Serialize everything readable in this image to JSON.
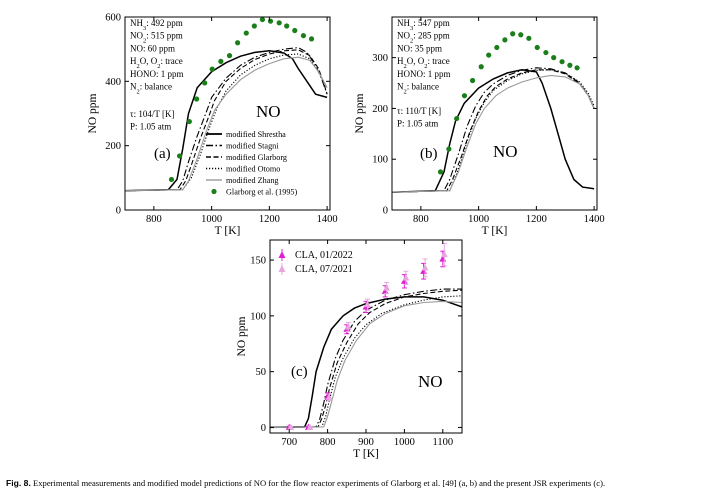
{
  "caption": {
    "label": "Fig. 8.",
    "text": "Experimental measurements and modified model predictions of NO for the flow reactor experiments of Glarborg et al. [49] (a, b) and the present JSR experiments (c)."
  },
  "colors": {
    "exp_green": "#1a7f1a",
    "cla_2022": "#e01fd2",
    "cla_2021": "#e8a6e0",
    "model_gray": "#9a9a9a"
  },
  "model_styles": [
    {
      "name": "modified Shrestha",
      "dash": "solid",
      "color": "#000000",
      "width": 1.5
    },
    {
      "name": "modified Stagni",
      "dash": "dashdot",
      "color": "#000000",
      "width": 1.1
    },
    {
      "name": "modified Glarborg",
      "dash": "dashed",
      "color": "#000000",
      "width": 1.1
    },
    {
      "name": "modified Otomo",
      "dash": "dotted",
      "color": "#000000",
      "width": 1.1
    },
    {
      "name": "modified Zhang",
      "dash": "solid",
      "color": "#9a9a9a",
      "width": 1.1
    }
  ],
  "chart_data": [
    {
      "panel": "(a)",
      "type": "line",
      "xlabel": "T [K]",
      "ylabel": "NO ppm",
      "xlim": [
        700,
        1410
      ],
      "ylim": [
        0,
        600
      ],
      "xticks": [
        800,
        1000,
        1200,
        1400
      ],
      "yticks": [
        0,
        200,
        400,
        600
      ],
      "species": "NO",
      "conditions": [
        "NH3: 492 ppm",
        "NO2: 515 ppm",
        "NO: 60 ppm",
        "H2O, O2: trace",
        "HONO: 1 ppm",
        "N2: balance"
      ],
      "conditions2": [
        "τ: 104/T [K]",
        "P: 1.05 atm"
      ],
      "legend": {
        "placement": "lower-right",
        "entries": [
          "modified Shrestha",
          "modified Stagni",
          "modified Glarborg",
          "modified Otomo",
          "modified Zhang",
          "Glarborg et al. (1995)"
        ]
      },
      "series": [
        {
          "name": "modified Shrestha",
          "x": [
            700,
            850,
            880,
            900,
            920,
            950,
            1000,
            1050,
            1100,
            1150,
            1200,
            1250,
            1280,
            1300,
            1330,
            1360,
            1400
          ],
          "y": [
            60,
            63,
            95,
            190,
            300,
            380,
            430,
            458,
            478,
            490,
            495,
            488,
            470,
            440,
            400,
            360,
            350
          ]
        },
        {
          "name": "modified Stagni",
          "x": [
            700,
            880,
            900,
            920,
            950,
            980,
            1000,
            1050,
            1100,
            1150,
            1200,
            1250,
            1300,
            1330,
            1360,
            1380,
            1400
          ],
          "y": [
            60,
            63,
            90,
            150,
            230,
            300,
            350,
            410,
            450,
            475,
            490,
            500,
            505,
            490,
            450,
            410,
            360
          ]
        },
        {
          "name": "modified Glarborg",
          "x": [
            700,
            890,
            910,
            930,
            960,
            990,
            1010,
            1050,
            1100,
            1150,
            1200,
            1250,
            1300,
            1340,
            1370,
            1390,
            1400
          ],
          "y": [
            60,
            63,
            90,
            140,
            220,
            290,
            340,
            400,
            440,
            468,
            485,
            495,
            498,
            480,
            440,
            390,
            360
          ]
        },
        {
          "name": "modified Otomo",
          "x": [
            700,
            900,
            930,
            960,
            990,
            1020,
            1050,
            1100,
            1150,
            1200,
            1250,
            1300,
            1340,
            1370,
            1400
          ],
          "y": [
            60,
            63,
            100,
            170,
            250,
            320,
            370,
            420,
            450,
            470,
            482,
            485,
            470,
            430,
            380
          ]
        },
        {
          "name": "modified Zhang",
          "x": [
            700,
            900,
            920,
            950,
            980,
            1010,
            1050,
            1100,
            1150,
            1200,
            1250,
            1300,
            1340,
            1370,
            1400
          ],
          "y": [
            60,
            63,
            90,
            160,
            240,
            310,
            360,
            405,
            435,
            455,
            470,
            475,
            465,
            430,
            380
          ]
        },
        {
          "name": "Glarborg et al. (1995)",
          "kind": "scatter",
          "x": [
            861,
            889,
            923,
            948,
            976,
            1002,
            1032,
            1062,
            1090,
            1120,
            1148,
            1176,
            1204,
            1234,
            1260,
            1288,
            1318,
            1346
          ],
          "y": [
            95,
            168,
            275,
            345,
            395,
            438,
            462,
            480,
            520,
            550,
            572,
            592,
            587,
            582,
            572,
            558,
            542,
            532
          ]
        }
      ]
    },
    {
      "panel": "(b)",
      "type": "line",
      "xlabel": "T [K]",
      "ylabel": "NO ppm",
      "xlim": [
        700,
        1410
      ],
      "ylim": [
        0,
        380
      ],
      "xticks": [
        800,
        1000,
        1200,
        1400
      ],
      "yticks": [
        0,
        100,
        200,
        300
      ],
      "species": "NO",
      "conditions": [
        "NH3: 547 ppm",
        "NO2: 285 ppm",
        "NO: 35 ppm",
        "H2O, O2: trace",
        "HONO: 1 ppm",
        "N2: balance"
      ],
      "conditions2": [
        "τ: 110/T [K]",
        "P: 1.05 atm"
      ],
      "series": [
        {
          "name": "modified Shrestha",
          "x": [
            700,
            850,
            880,
            900,
            920,
            950,
            1000,
            1050,
            1100,
            1150,
            1200,
            1220,
            1250,
            1280,
            1300,
            1330,
            1360,
            1400
          ],
          "y": [
            35,
            38,
            75,
            130,
            175,
            210,
            240,
            258,
            270,
            276,
            272,
            250,
            200,
            140,
            100,
            60,
            45,
            42
          ]
        },
        {
          "name": "modified Stagni",
          "x": [
            700,
            880,
            900,
            930,
            960,
            990,
            1020,
            1050,
            1100,
            1150,
            1200,
            1250,
            1300,
            1350,
            1380,
            1400
          ],
          "y": [
            35,
            38,
            60,
            110,
            165,
            205,
            232,
            248,
            265,
            275,
            280,
            278,
            270,
            250,
            225,
            200
          ]
        },
        {
          "name": "modified Glarborg",
          "x": [
            700,
            890,
            910,
            940,
            970,
            1000,
            1030,
            1060,
            1100,
            1150,
            1200,
            1250,
            1300,
            1350,
            1380,
            1400
          ],
          "y": [
            35,
            38,
            60,
            105,
            155,
            195,
            225,
            243,
            258,
            270,
            276,
            276,
            268,
            248,
            225,
            200
          ]
        },
        {
          "name": "modified Otomo",
          "x": [
            700,
            900,
            930,
            960,
            990,
            1020,
            1050,
            1100,
            1150,
            1200,
            1250,
            1300,
            1350,
            1380,
            1400
          ],
          "y": [
            35,
            38,
            80,
            135,
            180,
            212,
            235,
            255,
            268,
            275,
            276,
            270,
            252,
            230,
            205
          ]
        },
        {
          "name": "modified Zhang",
          "x": [
            700,
            900,
            930,
            960,
            990,
            1020,
            1060,
            1100,
            1150,
            1200,
            1250,
            1300,
            1350,
            1380,
            1400
          ],
          "y": [
            35,
            38,
            75,
            125,
            170,
            200,
            225,
            240,
            252,
            260,
            265,
            262,
            248,
            225,
            200
          ]
        },
        {
          "name": "Glarborg et al. (1995)",
          "kind": "scatter",
          "x": [
            868,
            897,
            924,
            951,
            979,
            1009,
            1035,
            1063,
            1091,
            1118,
            1146,
            1174,
            1203,
            1233,
            1260,
            1289,
            1316,
            1341
          ],
          "y": [
            75,
            120,
            180,
            225,
            255,
            282,
            305,
            320,
            335,
            347,
            345,
            338,
            320,
            310,
            300,
            292,
            285,
            280
          ]
        }
      ]
    },
    {
      "panel": "(c)",
      "type": "line",
      "xlabel": "T [K]",
      "ylabel": "NO ppm",
      "xlim": [
        650,
        1150
      ],
      "ylim": [
        -5,
        168
      ],
      "xticks": [
        700,
        800,
        900,
        1000,
        1100
      ],
      "yticks": [
        0,
        50,
        100,
        150
      ],
      "species": "NO",
      "legend": {
        "placement": "top-left",
        "entries": [
          "CLA, 01/2022",
          "CLA, 07/2021"
        ]
      },
      "series": [
        {
          "name": "modified Shrestha",
          "x": [
            650,
            740,
            750,
            760,
            770,
            790,
            810,
            840,
            870,
            900,
            950,
            1000,
            1050,
            1100,
            1150
          ],
          "y": [
            0,
            0.5,
            8,
            28,
            50,
            72,
            88,
            100,
            107,
            111,
            115,
            117,
            117,
            114,
            108
          ]
        },
        {
          "name": "modified Stagni",
          "x": [
            650,
            770,
            780,
            790,
            800,
            820,
            840,
            870,
            900,
            950,
            1000,
            1050,
            1100,
            1150
          ],
          "y": [
            0,
            0.5,
            8,
            22,
            38,
            62,
            78,
            95,
            105,
            114,
            119,
            122,
            124,
            124
          ]
        },
        {
          "name": "modified Glarborg",
          "x": [
            650,
            775,
            785,
            795,
            805,
            825,
            850,
            880,
            910,
            950,
            1000,
            1050,
            1100,
            1150
          ],
          "y": [
            0,
            0.5,
            8,
            20,
            35,
            58,
            76,
            93,
            103,
            111,
            117,
            120,
            122,
            123
          ]
        },
        {
          "name": "modified Otomo",
          "x": [
            650,
            785,
            795,
            805,
            820,
            840,
            870,
            900,
            940,
            1000,
            1050,
            1100,
            1150
          ],
          "y": [
            0,
            0.5,
            10,
            25,
            45,
            62,
            80,
            92,
            102,
            110,
            114,
            117,
            118
          ]
        },
        {
          "name": "modified Zhang",
          "x": [
            650,
            790,
            800,
            812,
            825,
            845,
            875,
            910,
            950,
            1000,
            1050,
            1100,
            1150
          ],
          "y": [
            0,
            0.5,
            10,
            25,
            42,
            60,
            78,
            93,
            102,
            109,
            112,
            113,
            112
          ]
        },
        {
          "name": "CLA, 01/2022",
          "kind": "scatter",
          "marker": "triangle",
          "x": [
            700,
            750,
            800,
            850,
            900,
            950,
            1000,
            1050,
            1100
          ],
          "y": [
            0,
            0,
            28,
            88,
            108,
            122,
            131,
            140,
            151
          ],
          "err": [
            1,
            1,
            3,
            4,
            5,
            5,
            6,
            7,
            7
          ]
        },
        {
          "name": "CLA, 07/2021",
          "kind": "scatter",
          "marker": "triangle",
          "x": [
            700,
            750,
            800,
            850,
            900,
            950,
            1000,
            1050,
            1100
          ],
          "y": [
            0,
            0,
            27,
            90,
            110,
            125,
            134,
            143,
            155
          ],
          "err": [
            1,
            1,
            3,
            4,
            5,
            5,
            6,
            8,
            10
          ]
        }
      ]
    }
  ]
}
